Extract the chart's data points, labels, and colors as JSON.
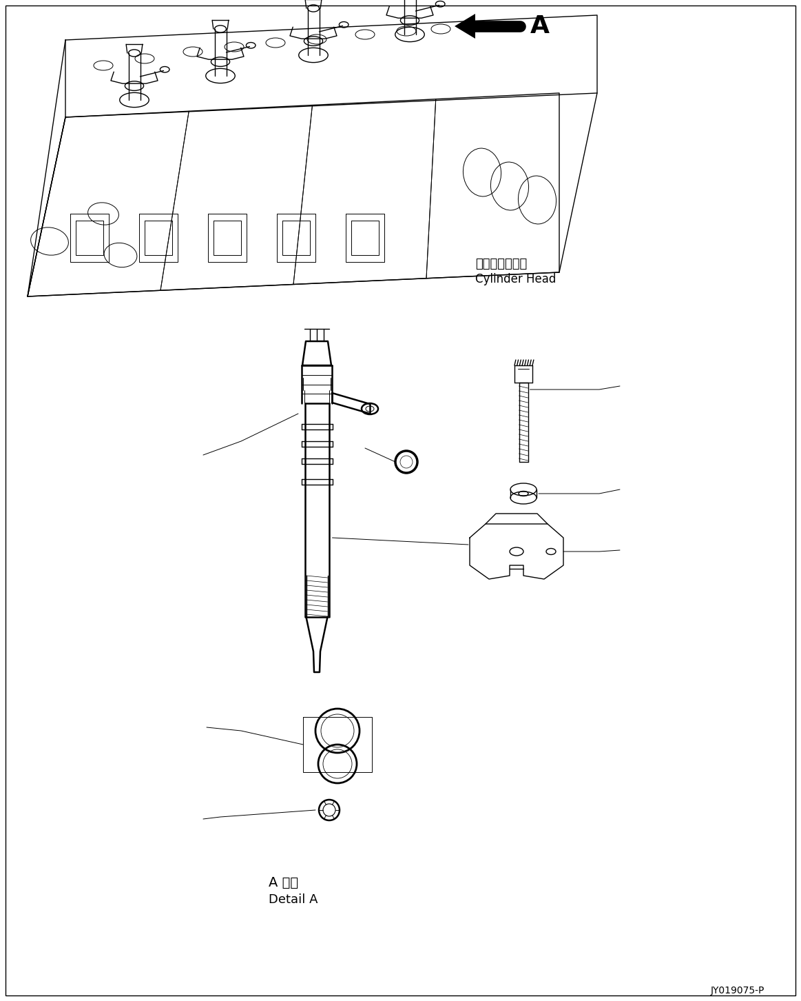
{
  "background_color": "#ffffff",
  "line_color": "#000000",
  "figure_width": 11.63,
  "figure_height": 14.52,
  "dpi": 100,
  "arrow_label": "A",
  "cylinder_head_label_jp": "シリンダヘッド",
  "cylinder_head_label_en": "Cylinder Head",
  "detail_label_jp": "A 詳細",
  "detail_label_en": "Detail A",
  "part_number": "JY019075-P"
}
